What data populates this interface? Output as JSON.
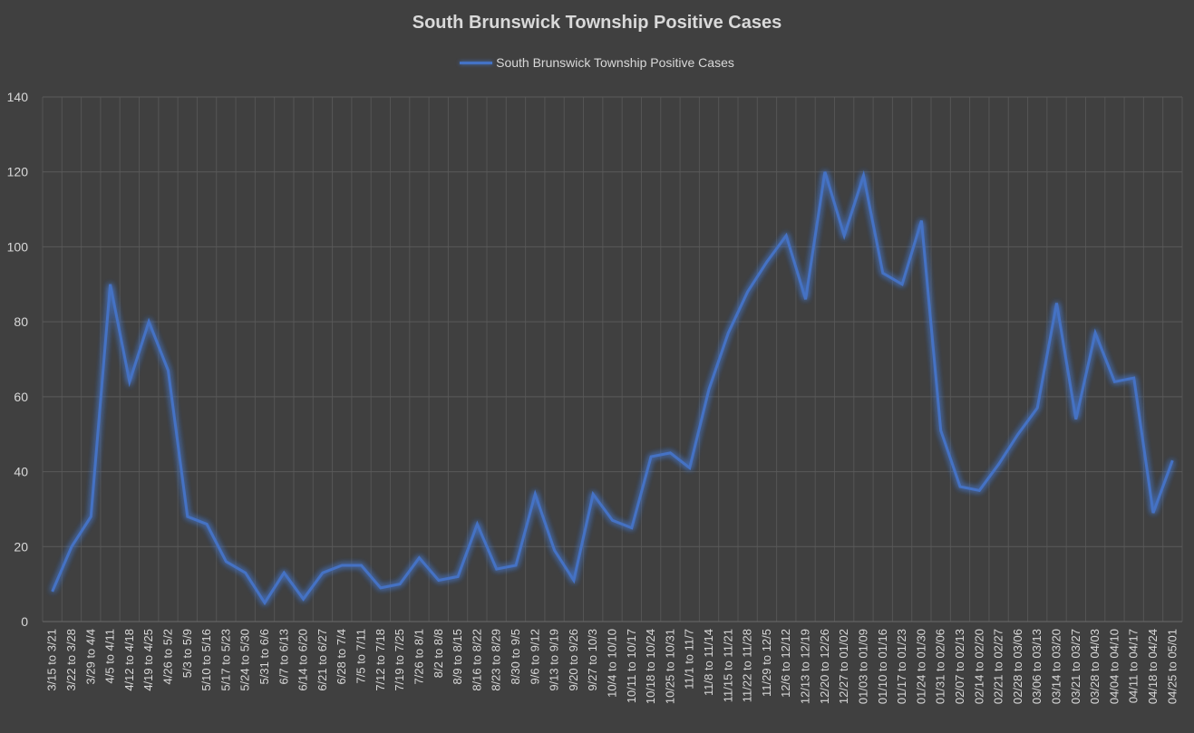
{
  "chart_data": {
    "type": "line",
    "title": "South Brunswick Township Positive Cases",
    "legend": "top",
    "ylim": [
      0,
      140
    ],
    "yticks": [
      0,
      20,
      40,
      60,
      80,
      100,
      120,
      140
    ],
    "grid": true,
    "categories": [
      "3/15 to 3/21",
      "3/22 to 3/28",
      "3/29 to 4/4",
      "4/5 to 4/11",
      "4/12 to 4/18",
      "4/19 to 4/25",
      "4/26 to 5/2",
      "5/3 to 5/9",
      "5/10 to 5/16",
      "5/17 to 5/23",
      "5/24 to 5/30",
      "5/31 to 6/6",
      "6/7 to 6/13",
      "6/14 to 6/20",
      "6/21 to 6/27",
      "6/28 to 7/4",
      "7/5 to 7/11",
      "7/12 to 7/18",
      "7/19 to 7/25",
      "7/26 to 8/1",
      "8/2 to 8/8",
      "8/9 to 8/15",
      "8/16 to 8/22",
      "8/23 to 8/29",
      "8/30 to 9/5",
      "9/6 to 9/12",
      "9/13 to 9/19",
      "9/20 to 9/26",
      "9/27 to 10/3",
      "10/4 to 10/10",
      "10/11 to 10/17",
      "10/18 to 10/24",
      "10/25 to 10/31",
      "11/1 to 11/7",
      "11/8 to 11/14",
      "11/15 to 11/21",
      "11/22 to 11/28",
      "11/29 to 12/5",
      "12/6 to 12/12",
      "12/13 to 12/19",
      "12/20 to 12/26",
      "12/27 to 01/02",
      "01/03 to 01/09",
      "01/10 to 01/16",
      "01/17 to 01/23",
      "01/24 to 01/30",
      "01/31 to 02/06",
      "02/07 to 02/13",
      "02/14 to 02/20",
      "02/21 to 02/27",
      "02/28 to 03/06",
      "03/06 to 03/13",
      "03/14 to 03/20",
      "03/21 to 03/27",
      "03/28 to 04/03",
      "04/04 to 04/10",
      "04/11 to 04/17",
      "04/18 to 04/24",
      "04/25 to 05/01"
    ],
    "series": [
      {
        "name": "South Brunswick Township Positive Cases",
        "color": "#4472c4",
        "values": [
          8,
          20,
          28,
          90,
          64,
          80,
          67,
          28,
          26,
          16,
          13,
          5,
          13,
          6,
          13,
          15,
          15,
          9,
          10,
          17,
          11,
          12,
          26,
          14,
          15,
          34,
          19,
          11,
          34,
          27,
          25,
          44,
          45,
          41,
          62,
          77,
          88,
          96,
          103,
          86,
          120,
          103,
          119,
          93,
          90,
          107,
          51,
          36,
          35,
          42,
          50,
          57,
          85,
          54,
          77,
          64,
          65,
          29,
          43
        ]
      }
    ]
  }
}
